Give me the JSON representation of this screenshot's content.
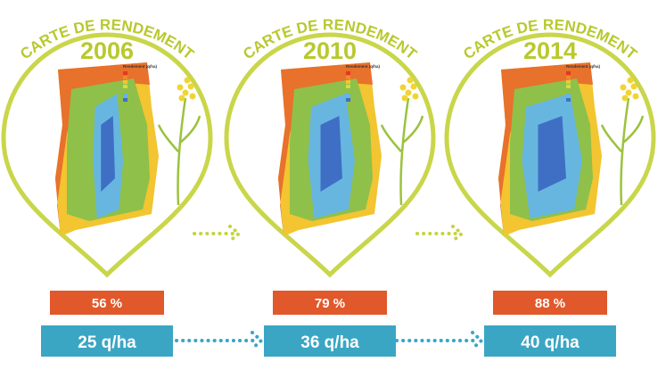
{
  "panels": [
    {
      "title": "CARTE DE RENDEMENT",
      "year": "2006",
      "legend_title": "Rendement (q/ha)",
      "percent": "56 %",
      "yield": "25 q/ha"
    },
    {
      "title": "CARTE DE RENDEMENT",
      "year": "2010",
      "legend_title": "Rendement (q/ha)",
      "percent": "79 %",
      "yield": "36 q/ha"
    },
    {
      "title": "CARTE DE RENDEMENT",
      "year": "2014",
      "legend_title": "Rendement (q/ha)",
      "percent": "88 %",
      "yield": "40 q/ha"
    }
  ]
}
